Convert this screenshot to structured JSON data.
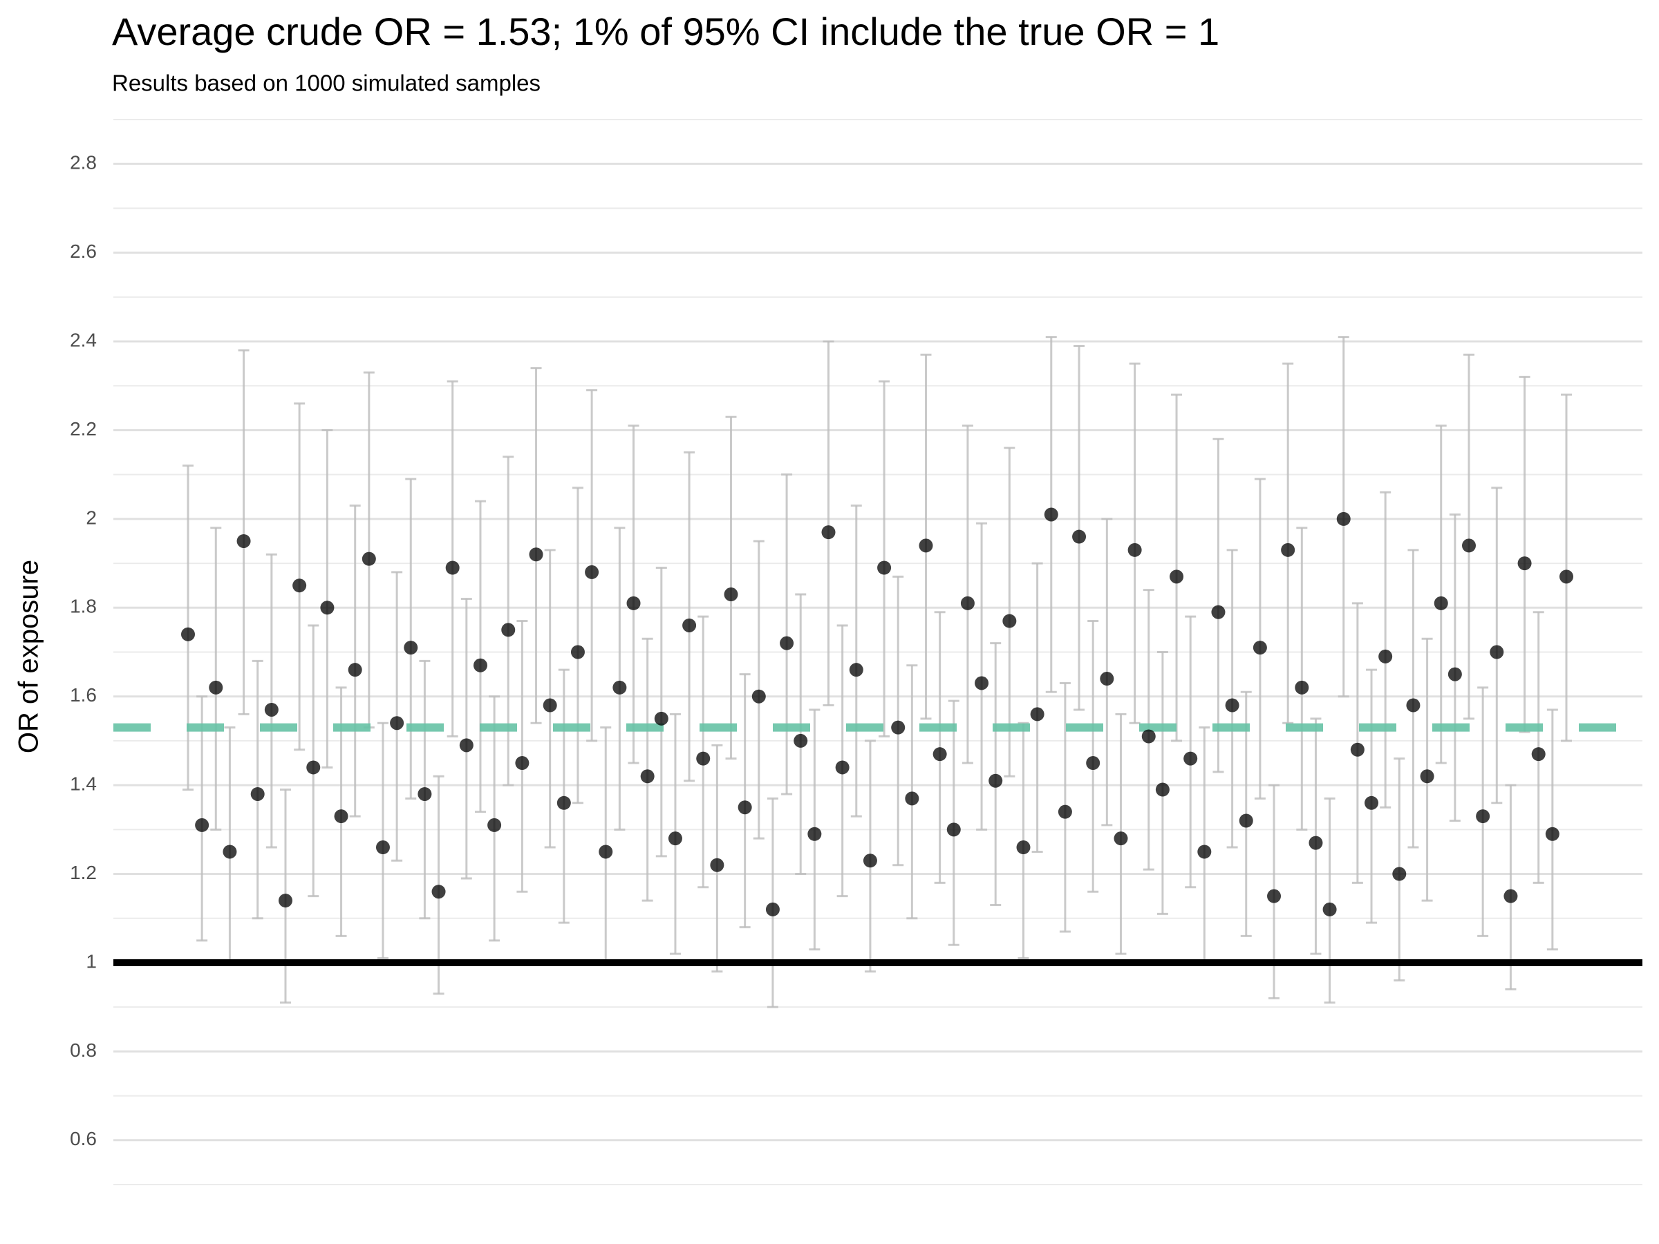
{
  "chart_data": {
    "type": "errorbar",
    "title": "Average crude OR = 1.53; 1% of 95% CI include the true OR = 1",
    "subtitle": "Results based on 1000 simulated samples",
    "y_label": "OR of exposure",
    "ylim": [
      0.5,
      2.9
    ],
    "yticks": [
      0.6,
      0.8,
      1.0,
      1.2,
      1.4,
      1.6,
      1.8,
      2.0,
      2.2,
      2.4,
      2.6,
      2.8
    ],
    "minor_yticks": [
      0.5,
      0.7,
      0.9,
      1.1,
      1.3,
      1.5,
      1.7,
      1.9,
      2.1,
      2.3,
      2.5,
      2.7,
      2.9
    ],
    "grid": true,
    "color": "#000000",
    "error_color": "#bdbdbd",
    "reference_lines": [
      {
        "value": 1,
        "color": "#000000",
        "dashed": false
      },
      {
        "value": 1.53,
        "color": "#66c2a5",
        "dashed": true
      }
    ],
    "values": [
      1.74,
      1.31,
      1.62,
      1.25,
      1.95,
      1.38,
      1.57,
      1.14,
      1.85,
      1.44,
      1.8,
      1.33,
      1.66,
      1.91,
      1.26,
      1.54,
      1.71,
      1.38,
      1.16,
      1.89,
      1.49,
      1.67,
      1.31,
      1.75,
      1.45,
      1.92,
      1.58,
      1.36,
      1.7,
      1.88,
      1.25,
      1.62,
      1.81,
      1.42,
      1.55,
      1.28,
      1.76,
      1.46,
      1.22,
      1.83,
      1.35,
      1.6,
      1.12,
      1.72,
      1.5,
      1.29,
      1.97,
      1.44,
      1.66,
      1.23,
      1.89,
      1.53,
      1.37,
      1.94,
      1.47,
      1.3,
      1.81,
      1.63,
      1.41,
      1.77,
      1.26,
      1.56,
      2.01,
      1.34,
      1.96,
      1.45,
      1.64,
      1.28,
      1.93,
      1.51,
      1.39,
      1.87,
      1.46,
      1.25,
      1.79,
      1.58,
      1.32,
      1.71,
      1.15,
      1.93,
      1.62,
      1.27,
      1.12,
      2.0,
      1.48,
      1.36,
      1.69,
      1.2,
      1.58,
      1.42,
      1.81,
      1.65,
      1.94,
      1.33,
      1.7,
      1.15,
      1.9,
      1.47,
      1.29,
      1.87
    ],
    "lower": [
      1.39,
      1.05,
      1.3,
      1.0,
      1.56,
      1.1,
      1.26,
      0.91,
      1.48,
      1.15,
      1.44,
      1.06,
      1.33,
      1.53,
      1.01,
      1.23,
      1.37,
      1.1,
      0.93,
      1.51,
      1.19,
      1.34,
      1.05,
      1.4,
      1.16,
      1.54,
      1.26,
      1.09,
      1.36,
      1.5,
      1.0,
      1.3,
      1.45,
      1.14,
      1.24,
      1.02,
      1.41,
      1.17,
      0.98,
      1.46,
      1.08,
      1.28,
      0.9,
      1.38,
      1.2,
      1.03,
      1.58,
      1.15,
      1.33,
      0.98,
      1.51,
      1.22,
      1.1,
      1.55,
      1.18,
      1.04,
      1.45,
      1.3,
      1.13,
      1.42,
      1.01,
      1.25,
      1.61,
      1.07,
      1.57,
      1.16,
      1.31,
      1.02,
      1.54,
      1.21,
      1.11,
      1.5,
      1.17,
      1.0,
      1.43,
      1.26,
      1.06,
      1.37,
      0.92,
      1.54,
      1.3,
      1.02,
      0.91,
      1.6,
      1.18,
      1.09,
      1.35,
      0.96,
      1.26,
      1.14,
      1.45,
      1.32,
      1.55,
      1.06,
      1.36,
      0.94,
      1.52,
      1.18,
      1.03,
      1.5
    ],
    "upper": [
      2.12,
      1.6,
      1.98,
      1.53,
      2.38,
      1.68,
      1.92,
      1.39,
      2.26,
      1.76,
      2.2,
      1.62,
      2.03,
      2.33,
      1.54,
      1.88,
      2.09,
      1.68,
      1.42,
      2.31,
      1.82,
      2.04,
      1.6,
      2.14,
      1.77,
      2.34,
      1.93,
      1.66,
      2.07,
      2.29,
      1.53,
      1.98,
      2.21,
      1.73,
      1.89,
      1.56,
      2.15,
      1.78,
      1.49,
      2.23,
      1.65,
      1.95,
      1.37,
      2.1,
      1.83,
      1.57,
      2.4,
      1.76,
      2.03,
      1.5,
      2.31,
      1.87,
      1.67,
      2.37,
      1.79,
      1.59,
      2.21,
      1.99,
      1.72,
      2.16,
      1.54,
      1.9,
      2.41,
      1.63,
      2.39,
      1.77,
      2.0,
      1.56,
      2.35,
      1.84,
      1.7,
      2.28,
      1.78,
      1.53,
      2.18,
      1.93,
      1.61,
      2.09,
      1.4,
      2.35,
      1.98,
      1.55,
      1.37,
      2.41,
      1.81,
      1.66,
      2.06,
      1.46,
      1.93,
      1.73,
      2.21,
      2.01,
      2.37,
      1.62,
      2.07,
      1.4,
      2.32,
      1.79,
      1.57,
      2.28
    ]
  }
}
